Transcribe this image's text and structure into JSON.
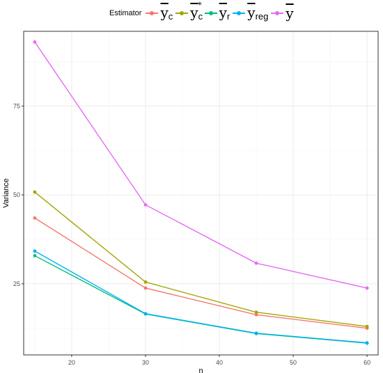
{
  "chart_data": {
    "type": "line",
    "xlabel": "n",
    "ylabel": "Variance",
    "xlim": [
      13.5,
      61.5
    ],
    "ylim": [
      5,
      96
    ],
    "x_ticks": [
      20,
      30,
      40,
      50,
      60
    ],
    "y_ticks": [
      25,
      50,
      75
    ],
    "grid": true,
    "legend": {
      "position": "top",
      "title": "Estimator",
      "entries": [
        {
          "symbol": "y",
          "sub": "c",
          "sup": ""
        },
        {
          "symbol": "y",
          "sub": "c",
          "sup": "*"
        },
        {
          "symbol": "y",
          "sub": "r",
          "sup": ""
        },
        {
          "symbol": "y",
          "sub": "reg",
          "sup": ""
        },
        {
          "symbol": "y",
          "sub": "",
          "sup": ""
        }
      ]
    },
    "x": [
      15,
      30,
      45,
      60
    ],
    "series": [
      {
        "name": "y_c",
        "color": "#F8766D",
        "values": [
          43.5,
          23.8,
          16.3,
          12.5
        ]
      },
      {
        "name": "y_c*",
        "color": "#A3A500",
        "values": [
          50.8,
          25.5,
          17.0,
          13.0
        ]
      },
      {
        "name": "y_r",
        "color": "#00BF7D",
        "values": [
          32.9,
          16.5,
          11.0,
          8.3
        ]
      },
      {
        "name": "y_reg",
        "color": "#00B0F6",
        "values": [
          34.2,
          16.6,
          11.1,
          8.4
        ]
      },
      {
        "name": "y",
        "color": "#E76BF3",
        "values": [
          93.0,
          47.2,
          30.8,
          23.8
        ]
      }
    ]
  }
}
